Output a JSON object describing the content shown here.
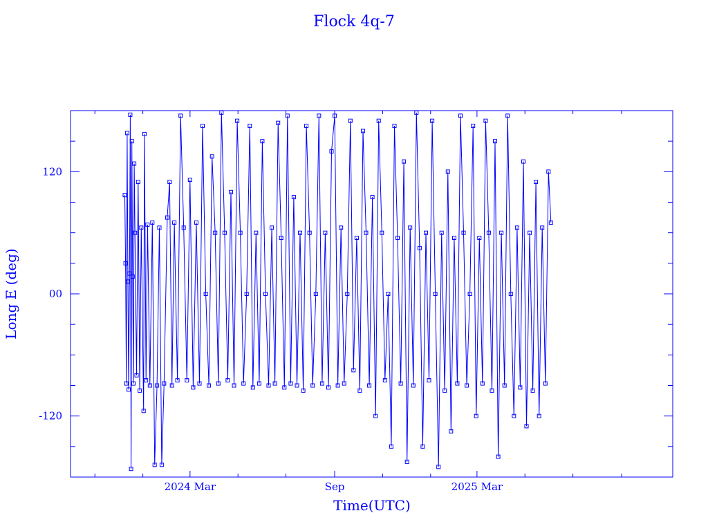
{
  "chart_data": {
    "type": "scatter",
    "title": "Flock 4q-7",
    "xlabel": "Time(UTC)",
    "ylabel": "Long E (deg)",
    "x_is_date": true,
    "xlim": [
      "2023-10-01",
      "2025-11-05"
    ],
    "ylim": [
      -180,
      180
    ],
    "x_tick_labels": [
      {
        "date": "2024-03-01",
        "label": "2024 Mar"
      },
      {
        "date": "2024-09-01",
        "label": "Sep"
      },
      {
        "date": "2025-03-01",
        "label": "2025 Mar"
      }
    ],
    "y_tick_labels": [
      {
        "value": 120,
        "label": "120"
      },
      {
        "value": 0,
        "label": "00"
      },
      {
        "value": -120,
        "label": "-120"
      }
    ],
    "x_minor_ticks": [
      "2023-11-01",
      "2024-01-01",
      "2024-05-01",
      "2024-07-01",
      "2024-11-01",
      "2025-01-01",
      "2025-05-01",
      "2025-07-01",
      "2025-09-01"
    ],
    "y_minor_ticks": [
      150,
      90,
      60,
      30,
      -30,
      -60,
      -90,
      -150
    ],
    "grid": false,
    "colors": {
      "series": "#0000ff",
      "axes": "#0000ff",
      "text": "#0000ff"
    },
    "series": [
      {
        "values": [
          {
            "x": "2023-12-09",
            "y": 97
          },
          {
            "x": "2023-12-10",
            "y": 30
          },
          {
            "x": "2023-12-11",
            "y": -88
          },
          {
            "x": "2023-12-12",
            "y": 158
          },
          {
            "x": "2023-12-13",
            "y": 12
          },
          {
            "x": "2023-12-14",
            "y": -94
          },
          {
            "x": "2023-12-15",
            "y": 20
          },
          {
            "x": "2023-12-16",
            "y": 176
          },
          {
            "x": "2023-12-17",
            "y": -172
          },
          {
            "x": "2023-12-18",
            "y": 150
          },
          {
            "x": "2023-12-19",
            "y": 17
          },
          {
            "x": "2023-12-20",
            "y": -88
          },
          {
            "x": "2023-12-21",
            "y": 128
          },
          {
            "x": "2023-12-22",
            "y": 60
          },
          {
            "x": "2023-12-24",
            "y": -80
          },
          {
            "x": "2023-12-26",
            "y": 110
          },
          {
            "x": "2023-12-28",
            "y": -95
          },
          {
            "x": "2023-12-30",
            "y": 65
          },
          {
            "x": "2024-01-02",
            "y": -115
          },
          {
            "x": "2024-01-03",
            "y": 157
          },
          {
            "x": "2024-01-05",
            "y": -85
          },
          {
            "x": "2024-01-07",
            "y": 68
          },
          {
            "x": "2024-01-10",
            "y": -90
          },
          {
            "x": "2024-01-13",
            "y": 70
          },
          {
            "x": "2024-01-16",
            "y": -168
          },
          {
            "x": "2024-01-19",
            "y": -90
          },
          {
            "x": "2024-01-22",
            "y": 65
          },
          {
            "x": "2024-01-25",
            "y": -168
          },
          {
            "x": "2024-01-28",
            "y": -88
          },
          {
            "x": "2024-02-01",
            "y": 75
          },
          {
            "x": "2024-02-04",
            "y": 110
          },
          {
            "x": "2024-02-07",
            "y": -90
          },
          {
            "x": "2024-02-10",
            "y": 70
          },
          {
            "x": "2024-02-14",
            "y": -85
          },
          {
            "x": "2024-02-18",
            "y": 175
          },
          {
            "x": "2024-02-22",
            "y": 65
          },
          {
            "x": "2024-02-26",
            "y": -85
          },
          {
            "x": "2024-03-01",
            "y": 112
          },
          {
            "x": "2024-03-05",
            "y": -92
          },
          {
            "x": "2024-03-09",
            "y": 70
          },
          {
            "x": "2024-03-13",
            "y": -88
          },
          {
            "x": "2024-03-17",
            "y": 165
          },
          {
            "x": "2024-03-21",
            "y": 0
          },
          {
            "x": "2024-03-25",
            "y": -90
          },
          {
            "x": "2024-03-29",
            "y": 135
          },
          {
            "x": "2024-04-02",
            "y": 60
          },
          {
            "x": "2024-04-06",
            "y": -88
          },
          {
            "x": "2024-04-10",
            "y": 178
          },
          {
            "x": "2024-04-14",
            "y": 60
          },
          {
            "x": "2024-04-18",
            "y": -85
          },
          {
            "x": "2024-04-22",
            "y": 100
          },
          {
            "x": "2024-04-26",
            "y": -90
          },
          {
            "x": "2024-04-30",
            "y": 170
          },
          {
            "x": "2024-05-04",
            "y": 60
          },
          {
            "x": "2024-05-08",
            "y": -88
          },
          {
            "x": "2024-05-12",
            "y": 0
          },
          {
            "x": "2024-05-16",
            "y": 165
          },
          {
            "x": "2024-05-20",
            "y": -92
          },
          {
            "x": "2024-05-24",
            "y": 60
          },
          {
            "x": "2024-05-28",
            "y": -88
          },
          {
            "x": "2024-06-01",
            "y": 150
          },
          {
            "x": "2024-06-05",
            "y": 0
          },
          {
            "x": "2024-06-09",
            "y": -90
          },
          {
            "x": "2024-06-13",
            "y": 65
          },
          {
            "x": "2024-06-17",
            "y": -88
          },
          {
            "x": "2024-06-21",
            "y": 168
          },
          {
            "x": "2024-06-25",
            "y": 55
          },
          {
            "x": "2024-06-29",
            "y": -92
          },
          {
            "x": "2024-07-03",
            "y": 175
          },
          {
            "x": "2024-07-07",
            "y": -88
          },
          {
            "x": "2024-07-11",
            "y": 95
          },
          {
            "x": "2024-07-15",
            "y": -90
          },
          {
            "x": "2024-07-19",
            "y": 60
          },
          {
            "x": "2024-07-23",
            "y": -95
          },
          {
            "x": "2024-07-27",
            "y": 165
          },
          {
            "x": "2024-07-31",
            "y": 60
          },
          {
            "x": "2024-08-04",
            "y": -90
          },
          {
            "x": "2024-08-08",
            "y": 0
          },
          {
            "x": "2024-08-12",
            "y": 175
          },
          {
            "x": "2024-08-16",
            "y": -88
          },
          {
            "x": "2024-08-20",
            "y": 60
          },
          {
            "x": "2024-08-24",
            "y": -92
          },
          {
            "x": "2024-08-28",
            "y": 140
          },
          {
            "x": "2024-09-01",
            "y": 175
          },
          {
            "x": "2024-09-05",
            "y": -90
          },
          {
            "x": "2024-09-09",
            "y": 65
          },
          {
            "x": "2024-09-13",
            "y": -88
          },
          {
            "x": "2024-09-17",
            "y": 0
          },
          {
            "x": "2024-09-21",
            "y": 170
          },
          {
            "x": "2024-09-25",
            "y": -75
          },
          {
            "x": "2024-09-29",
            "y": 55
          },
          {
            "x": "2024-10-03",
            "y": -95
          },
          {
            "x": "2024-10-07",
            "y": 160
          },
          {
            "x": "2024-10-11",
            "y": 60
          },
          {
            "x": "2024-10-15",
            "y": -90
          },
          {
            "x": "2024-10-19",
            "y": 95
          },
          {
            "x": "2024-10-23",
            "y": -120
          },
          {
            "x": "2024-10-27",
            "y": 170
          },
          {
            "x": "2024-10-31",
            "y": 60
          },
          {
            "x": "2024-11-04",
            "y": -85
          },
          {
            "x": "2024-11-08",
            "y": 0
          },
          {
            "x": "2024-11-12",
            "y": -150
          },
          {
            "x": "2024-11-16",
            "y": 165
          },
          {
            "x": "2024-11-20",
            "y": 55
          },
          {
            "x": "2024-11-24",
            "y": -88
          },
          {
            "x": "2024-11-28",
            "y": 130
          },
          {
            "x": "2024-12-02",
            "y": -165
          },
          {
            "x": "2024-12-06",
            "y": 65
          },
          {
            "x": "2024-12-10",
            "y": -90
          },
          {
            "x": "2024-12-14",
            "y": 178
          },
          {
            "x": "2024-12-18",
            "y": 45
          },
          {
            "x": "2024-12-22",
            "y": -150
          },
          {
            "x": "2024-12-26",
            "y": 60
          },
          {
            "x": "2024-12-30",
            "y": -85
          },
          {
            "x": "2025-01-03",
            "y": 170
          },
          {
            "x": "2025-01-07",
            "y": 0
          },
          {
            "x": "2025-01-11",
            "y": -170
          },
          {
            "x": "2025-01-15",
            "y": 60
          },
          {
            "x": "2025-01-19",
            "y": -95
          },
          {
            "x": "2025-01-23",
            "y": 120
          },
          {
            "x": "2025-01-27",
            "y": -135
          },
          {
            "x": "2025-01-31",
            "y": 55
          },
          {
            "x": "2025-02-04",
            "y": -88
          },
          {
            "x": "2025-02-08",
            "y": 175
          },
          {
            "x": "2025-02-12",
            "y": 60
          },
          {
            "x": "2025-02-16",
            "y": -90
          },
          {
            "x": "2025-02-20",
            "y": 0
          },
          {
            "x": "2025-02-24",
            "y": 165
          },
          {
            "x": "2025-02-28",
            "y": -120
          },
          {
            "x": "2025-03-04",
            "y": 55
          },
          {
            "x": "2025-03-08",
            "y": -88
          },
          {
            "x": "2025-03-12",
            "y": 170
          },
          {
            "x": "2025-03-16",
            "y": 60
          },
          {
            "x": "2025-03-20",
            "y": -95
          },
          {
            "x": "2025-03-24",
            "y": 150
          },
          {
            "x": "2025-03-28",
            "y": -160
          },
          {
            "x": "2025-04-01",
            "y": 60
          },
          {
            "x": "2025-04-05",
            "y": -90
          },
          {
            "x": "2025-04-09",
            "y": 175
          },
          {
            "x": "2025-04-13",
            "y": 0
          },
          {
            "x": "2025-04-17",
            "y": -120
          },
          {
            "x": "2025-04-21",
            "y": 65
          },
          {
            "x": "2025-04-25",
            "y": -92
          },
          {
            "x": "2025-04-29",
            "y": 130
          },
          {
            "x": "2025-05-03",
            "y": -130
          },
          {
            "x": "2025-05-07",
            "y": 60
          },
          {
            "x": "2025-05-11",
            "y": -95
          },
          {
            "x": "2025-05-15",
            "y": 110
          },
          {
            "x": "2025-05-19",
            "y": -120
          },
          {
            "x": "2025-05-23",
            "y": 65
          },
          {
            "x": "2025-05-27",
            "y": -88
          },
          {
            "x": "2025-05-31",
            "y": 120
          },
          {
            "x": "2025-06-03",
            "y": 70
          }
        ]
      }
    ]
  }
}
